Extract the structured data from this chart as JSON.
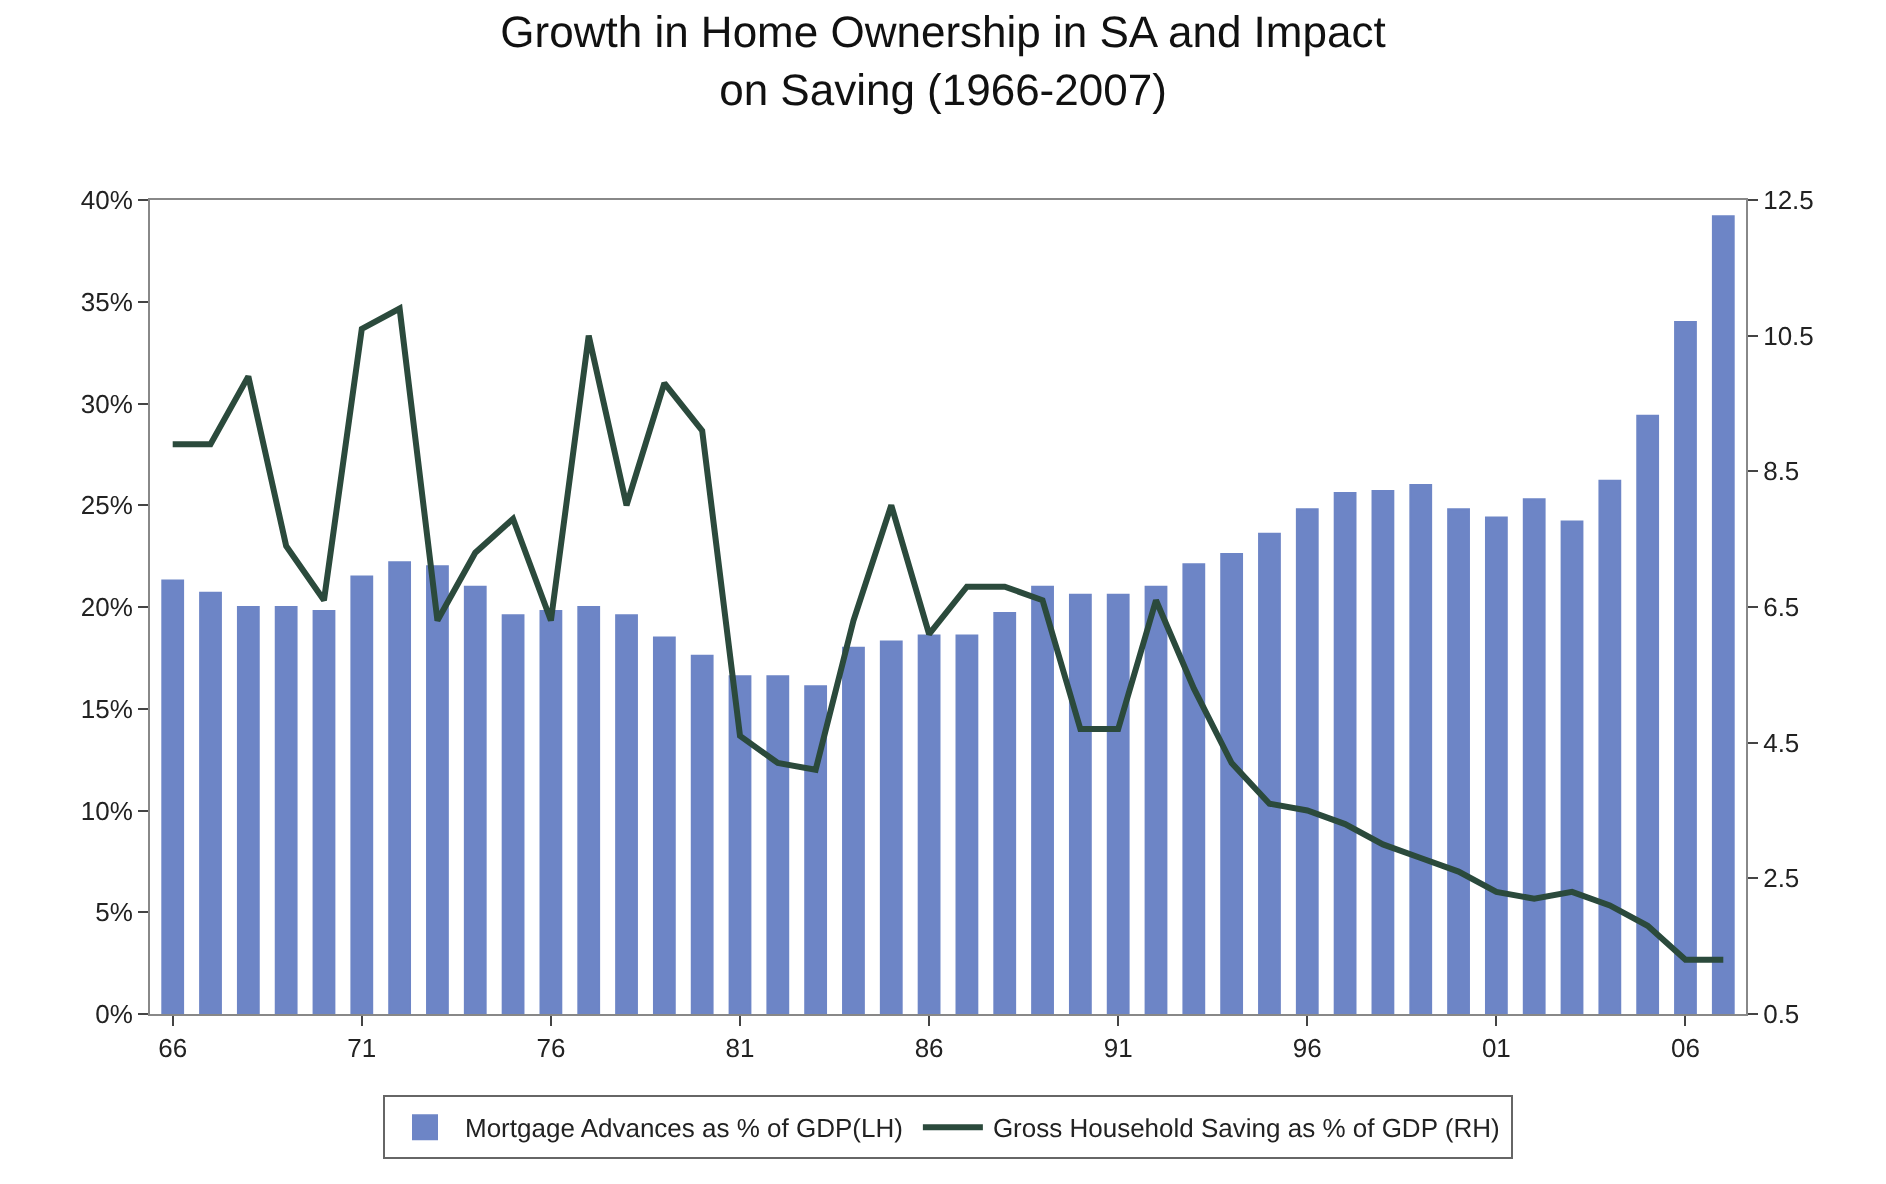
{
  "chart_data": {
    "type": "bar",
    "title": "Growth in Home Ownership in SA and Impact on Saving (1966-2007)",
    "categories": [
      "66",
      null,
      null,
      null,
      null,
      "71",
      null,
      null,
      null,
      null,
      "76",
      null,
      null,
      null,
      null,
      "81",
      null,
      null,
      null,
      null,
      "86",
      null,
      null,
      null,
      null,
      "91",
      null,
      null,
      null,
      null,
      "96",
      null,
      null,
      null,
      null,
      "01",
      null,
      null,
      null,
      null,
      "06",
      null
    ],
    "series": [
      {
        "name": "Mortgage Advances as % of GDP(LH)",
        "color": "#6d85c6",
        "values": [
          21.3,
          20.7,
          20.0,
          20.0,
          19.8,
          21.5,
          22.2,
          22.0,
          21.0,
          19.6,
          19.8,
          20.0,
          19.6,
          18.5,
          17.6,
          16.6,
          16.6,
          16.1,
          18.0,
          18.3,
          18.6,
          18.6,
          19.7,
          21.0,
          20.6,
          20.6,
          21.0,
          22.1,
          22.6,
          23.6,
          24.8,
          25.6,
          25.7,
          26.0,
          24.8,
          24.4,
          25.3,
          24.2,
          26.2,
          29.4,
          34.0,
          39.2
        ]
      },
      {
        "name": "Gross Household Saving as % of GDP (RH)",
        "type": "line",
        "axis": "y2",
        "color": "#2b4a3c",
        "values": [
          8.9,
          8.9,
          9.9,
          7.4,
          6.6,
          10.6,
          10.9,
          6.3,
          7.3,
          7.8,
          6.3,
          10.5,
          8.0,
          9.8,
          9.1,
          4.6,
          4.2,
          4.1,
          6.3,
          8.0,
          6.1,
          6.8,
          6.8,
          6.6,
          4.7,
          4.7,
          6.6,
          5.3,
          4.2,
          3.6,
          3.5,
          3.3,
          3.0,
          2.8,
          2.6,
          2.3,
          2.2,
          2.3,
          2.1,
          1.8,
          1.3,
          1.3
        ]
      }
    ],
    "ylim": [
      0,
      40
    ],
    "yticks": [
      {
        "value": 0,
        "label": "0%"
      },
      {
        "value": 5,
        "label": "5%"
      },
      {
        "value": 10,
        "label": "10%"
      },
      {
        "value": 15,
        "label": "15%"
      },
      {
        "value": 20,
        "label": "20%"
      },
      {
        "value": 25,
        "label": "25%"
      },
      {
        "value": 30,
        "label": "30%"
      },
      {
        "value": 35,
        "label": "35%"
      },
      {
        "value": 40,
        "label": "40%"
      }
    ],
    "y2lim": [
      0.5,
      12.5
    ],
    "y2ticks": [
      0.5,
      2.5,
      4.5,
      6.5,
      8.5,
      10.5,
      12.5
    ],
    "grid": false,
    "legend": "bottom",
    "marker": "none",
    "line_style": "solid"
  }
}
